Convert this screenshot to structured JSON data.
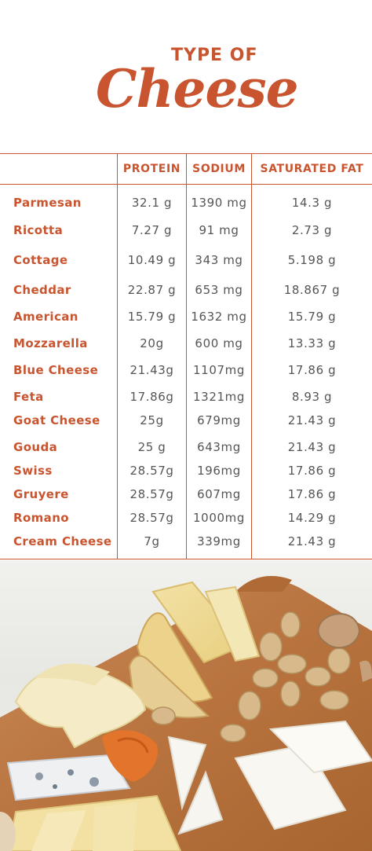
{
  "title": {
    "small": "TYPE OF",
    "big": "Cheese"
  },
  "table": {
    "headers": {
      "protein": "PROTEIN",
      "sodium": "SODIUM",
      "saturated_fat": "SATURATED FAT"
    },
    "rows": [
      {
        "name": "Parmesan",
        "protein": "32.1 g",
        "sodium": "1390 mg",
        "fat": "14.3 g"
      },
      {
        "name": "Ricotta",
        "protein": "7.27 g",
        "sodium": "91 mg",
        "fat": "2.73 g"
      },
      {
        "name": "Cottage",
        "protein": "10.49 g",
        "sodium": "343 mg",
        "fat": "5.198 g"
      },
      {
        "name": "Cheddar",
        "protein": "22.87 g",
        "sodium": "653 mg",
        "fat": "18.867 g"
      },
      {
        "name": "American",
        "protein": "15.79 g",
        "sodium": "1632 mg",
        "fat": "15.79 g"
      },
      {
        "name": "Mozzarella",
        "protein": "20g",
        "sodium": "600 mg",
        "fat": "13.33 g"
      },
      {
        "name": "Blue Cheese",
        "protein": "21.43g",
        "sodium": "1107mg",
        "fat": "17.86 g"
      },
      {
        "name": "Feta",
        "protein": "17.86g",
        "sodium": "1321mg",
        "fat": "8.93 g"
      },
      {
        "name": "Goat Cheese",
        "protein": "25g",
        "sodium": "679mg",
        "fat": "21.43 g"
      },
      {
        "name": "Gouda",
        "protein": "25 g",
        "sodium": "643mg",
        "fat": "21.43 g"
      },
      {
        "name": "Swiss",
        "protein": "28.57g",
        "sodium": "196mg",
        "fat": "17.86 g"
      },
      {
        "name": "Gruyere",
        "protein": "28.57g",
        "sodium": "607mg",
        "fat": "17.86 g"
      },
      {
        "name": "Romano",
        "protein": "28.57g",
        "sodium": "1000mg",
        "fat": "14.29 g"
      },
      {
        "name": "Cream Cheese",
        "protein": "7g",
        "sodium": "339mg",
        "fat": "21.43 g"
      }
    ]
  },
  "colors": {
    "accent": "#c8552f",
    "value_text": "#555555"
  },
  "photo": {
    "subject": "cheese-board-photo"
  }
}
